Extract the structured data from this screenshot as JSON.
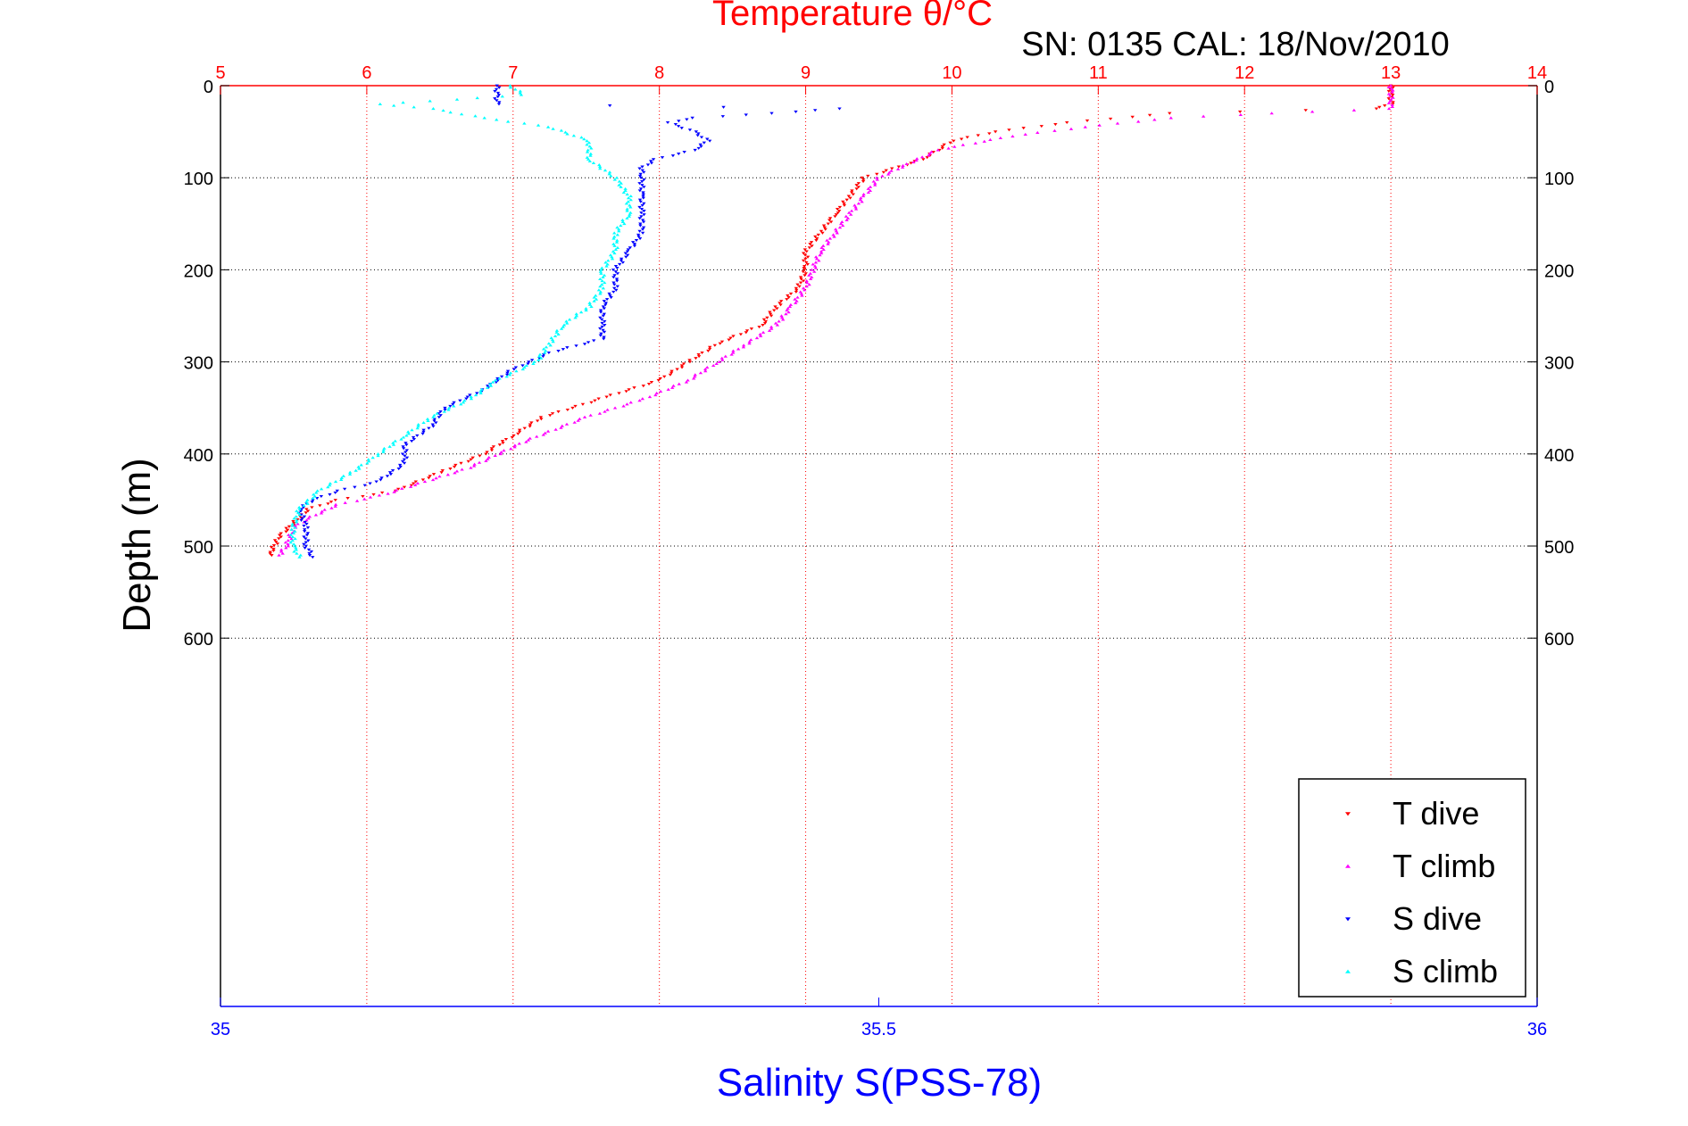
{
  "chart_data": {
    "type": "scatter",
    "title": "Temperature θ/°C",
    "annotation": "SN: 0135  CAL: 18/Nov/2010",
    "xlabel": "Salinity S(PSS-78)",
    "ylabel": "Depth (m)",
    "grid": true,
    "legend_position": "bottom-right",
    "axes": {
      "temperature_x": {
        "range": [
          5,
          14
        ],
        "ticks": [
          5,
          6,
          7,
          8,
          9,
          10,
          11,
          12,
          13,
          14
        ],
        "color": "#ff0000",
        "position": "top"
      },
      "salinity_x": {
        "range": [
          35,
          36
        ],
        "ticks": [
          "35",
          "35.5",
          "36"
        ],
        "color": "#0000ff",
        "position": "bottom"
      },
      "depth_y": {
        "range": [
          0,
          1000
        ],
        "ticks": [
          0,
          100,
          200,
          300,
          400,
          500,
          600
        ],
        "reversed": true
      }
    },
    "series": [
      {
        "name": "T dive",
        "axis": "temperature_x",
        "color": "#ff0000",
        "marker": "triangle-down",
        "points": [
          [
            13.0,
            0
          ],
          [
            13.0,
            10
          ],
          [
            13.0,
            20
          ],
          [
            12.9,
            25
          ],
          [
            11.5,
            30
          ],
          [
            10.8,
            40
          ],
          [
            10.3,
            50
          ],
          [
            10.0,
            60
          ],
          [
            9.9,
            70
          ],
          [
            9.8,
            80
          ],
          [
            9.6,
            90
          ],
          [
            9.4,
            100
          ],
          [
            9.3,
            120
          ],
          [
            9.2,
            140
          ],
          [
            9.1,
            160
          ],
          [
            9.0,
            180
          ],
          [
            9.0,
            200
          ],
          [
            8.95,
            220
          ],
          [
            8.8,
            240
          ],
          [
            8.7,
            260
          ],
          [
            8.4,
            280
          ],
          [
            8.2,
            300
          ],
          [
            8.0,
            320
          ],
          [
            7.6,
            340
          ],
          [
            7.2,
            360
          ],
          [
            7.0,
            380
          ],
          [
            6.8,
            400
          ],
          [
            6.5,
            420
          ],
          [
            6.2,
            440
          ],
          [
            5.8,
            450
          ],
          [
            5.6,
            460
          ],
          [
            5.5,
            475
          ],
          [
            5.4,
            490
          ],
          [
            5.35,
            505
          ],
          [
            5.35,
            510
          ]
        ]
      },
      {
        "name": "T climb",
        "axis": "temperature_x",
        "color": "#ff00ff",
        "marker": "triangle-up",
        "points": [
          [
            5.4,
            510
          ],
          [
            5.45,
            500
          ],
          [
            5.5,
            480
          ],
          [
            5.6,
            470
          ],
          [
            5.8,
            455
          ],
          [
            6.1,
            445
          ],
          [
            6.4,
            430
          ],
          [
            6.7,
            415
          ],
          [
            6.9,
            400
          ],
          [
            7.1,
            385
          ],
          [
            7.5,
            360
          ],
          [
            7.9,
            340
          ],
          [
            8.2,
            320
          ],
          [
            8.4,
            300
          ],
          [
            8.6,
            280
          ],
          [
            8.8,
            260
          ],
          [
            8.9,
            240
          ],
          [
            9.0,
            220
          ],
          [
            9.05,
            200
          ],
          [
            9.1,
            180
          ],
          [
            9.2,
            160
          ],
          [
            9.3,
            140
          ],
          [
            9.4,
            120
          ],
          [
            9.5,
            100
          ],
          [
            9.7,
            85
          ],
          [
            9.9,
            70
          ],
          [
            10.4,
            55
          ],
          [
            10.9,
            45
          ],
          [
            11.5,
            35
          ],
          [
            12.2,
            30
          ],
          [
            13.0,
            25
          ],
          [
            13.0,
            15
          ],
          [
            13.0,
            5
          ],
          [
            13.0,
            0
          ]
        ]
      },
      {
        "name": "S dive",
        "axis": "salinity_x",
        "color": "#0000ff",
        "marker": "triangle-down",
        "points": [
          [
            35.21,
            0
          ],
          [
            35.21,
            10
          ],
          [
            35.21,
            20
          ],
          [
            35.47,
            25
          ],
          [
            35.42,
            30
          ],
          [
            35.36,
            35
          ],
          [
            35.34,
            40
          ],
          [
            35.36,
            50
          ],
          [
            35.37,
            60
          ],
          [
            35.36,
            70
          ],
          [
            35.33,
            80
          ],
          [
            35.32,
            90
          ],
          [
            35.32,
            100
          ],
          [
            35.32,
            120
          ],
          [
            35.32,
            140
          ],
          [
            35.32,
            160
          ],
          [
            35.31,
            180
          ],
          [
            35.3,
            200
          ],
          [
            35.3,
            220
          ],
          [
            35.29,
            240
          ],
          [
            35.29,
            260
          ],
          [
            35.29,
            275
          ],
          [
            35.25,
            290
          ],
          [
            35.22,
            310
          ],
          [
            35.2,
            330
          ],
          [
            35.17,
            350
          ],
          [
            35.16,
            370
          ],
          [
            35.14,
            390
          ],
          [
            35.14,
            410
          ],
          [
            35.12,
            430
          ],
          [
            35.09,
            440
          ],
          [
            35.07,
            450
          ],
          [
            35.06,
            460
          ],
          [
            35.065,
            480
          ],
          [
            35.065,
            500
          ],
          [
            35.07,
            512
          ]
        ]
      },
      {
        "name": "S climb",
        "axis": "salinity_x",
        "color": "#00ffff",
        "marker": "triangle-up",
        "points": [
          [
            35.06,
            512
          ],
          [
            35.055,
            500
          ],
          [
            35.055,
            480
          ],
          [
            35.06,
            460
          ],
          [
            35.075,
            440
          ],
          [
            35.1,
            420
          ],
          [
            35.12,
            400
          ],
          [
            35.14,
            380
          ],
          [
            35.16,
            360
          ],
          [
            35.19,
            340
          ],
          [
            35.21,
            320
          ],
          [
            35.24,
            300
          ],
          [
            35.25,
            280
          ],
          [
            35.26,
            260
          ],
          [
            35.28,
            240
          ],
          [
            35.29,
            220
          ],
          [
            35.29,
            200
          ],
          [
            35.3,
            180
          ],
          [
            35.3,
            160
          ],
          [
            35.31,
            140
          ],
          [
            35.31,
            120
          ],
          [
            35.3,
            100
          ],
          [
            35.28,
            80
          ],
          [
            35.28,
            60
          ],
          [
            35.25,
            45
          ],
          [
            35.2,
            35
          ],
          [
            35.16,
            25
          ],
          [
            35.12,
            20
          ],
          [
            35.18,
            15
          ],
          [
            35.23,
            10
          ],
          [
            35.22,
            0
          ]
        ]
      }
    ]
  }
}
